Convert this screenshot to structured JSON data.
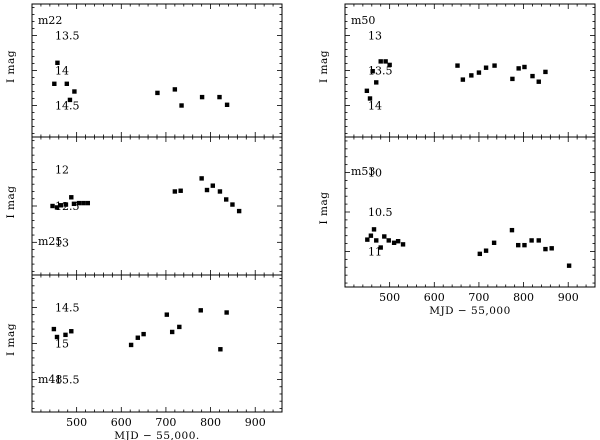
{
  "chart_data": [
    {
      "type": "scatter",
      "label": "m22",
      "xlim": [
        400,
        960
      ],
      "ylim": [
        14.95,
        13.05
      ],
      "ylabel": "I mag",
      "yticks": [
        13.5,
        14,
        14.5
      ],
      "x": [
        450,
        457,
        478,
        485,
        495,
        681,
        720,
        735,
        781,
        820,
        837
      ],
      "y": [
        14.19,
        13.89,
        14.19,
        14.42,
        14.3,
        14.32,
        14.27,
        14.5,
        14.38,
        14.38,
        14.49
      ]
    },
    {
      "type": "scatter",
      "label": "m25",
      "ylim": [
        13.45,
        11.55
      ],
      "ylabel": "I mag",
      "yticks": [
        12,
        12.5,
        13
      ],
      "x": [
        446,
        456,
        465,
        476,
        488,
        494,
        505,
        515,
        525,
        720,
        733,
        780,
        792,
        805,
        821,
        835,
        849,
        864
      ],
      "y": [
        12.5,
        12.52,
        12.49,
        12.48,
        12.38,
        12.47,
        12.46,
        12.46,
        12.46,
        12.3,
        12.29,
        12.12,
        12.28,
        12.22,
        12.3,
        12.41,
        12.48,
        12.57
      ]
    },
    {
      "type": "scatter",
      "label": "m48",
      "ylim": [
        15.95,
        14.05
      ],
      "ylabel": "I mag",
      "yticks": [
        14.5,
        15,
        15.5
      ],
      "xlabel": "MJD  −  55,000.",
      "xticks": [
        500,
        600,
        700,
        800,
        900
      ],
      "x": [
        449,
        456,
        475,
        488,
        622,
        637,
        650,
        702,
        714,
        730,
        778,
        822,
        836
      ],
      "y": [
        14.8,
        14.91,
        14.88,
        14.83,
        15.02,
        14.92,
        14.87,
        14.6,
        14.84,
        14.77,
        14.54,
        15.08,
        14.57
      ]
    },
    {
      "type": "scatter",
      "label": "m50",
      "xlim": [
        400,
        960
      ],
      "ylim": [
        14.45,
        12.55
      ],
      "ylabel": "I mag",
      "yticks": [
        13,
        13.5,
        14
      ],
      "x": [
        449,
        456,
        462,
        470,
        480,
        491,
        500,
        652,
        664,
        683,
        700,
        716,
        735,
        775,
        789,
        802,
        820,
        834,
        849
      ],
      "y": [
        13.79,
        13.9,
        13.51,
        13.67,
        13.37,
        13.37,
        13.42,
        13.43,
        13.63,
        13.57,
        13.53,
        13.46,
        13.43,
        13.62,
        13.47,
        13.45,
        13.58,
        13.66,
        13.52
      ]
    },
    {
      "type": "scatter",
      "label": "m53",
      "ylim": [
        11.45,
        9.55
      ],
      "ylabel": "I mag",
      "yticks": [
        10,
        10.5,
        11
      ],
      "xlabel": "MJD  −  55,000",
      "xticks": [
        500,
        600,
        700,
        800,
        900
      ],
      "x": [
        450,
        458,
        465,
        470,
        480,
        488,
        498,
        510,
        519,
        530,
        702,
        716,
        734,
        774,
        788,
        802,
        818,
        834,
        849,
        863,
        902
      ],
      "y": [
        10.85,
        10.8,
        10.72,
        10.86,
        10.95,
        10.81,
        10.86,
        10.89,
        10.87,
        10.91,
        11.03,
        10.99,
        10.89,
        10.73,
        10.92,
        10.92,
        10.86,
        10.86,
        10.97,
        10.96,
        11.18
      ]
    }
  ]
}
